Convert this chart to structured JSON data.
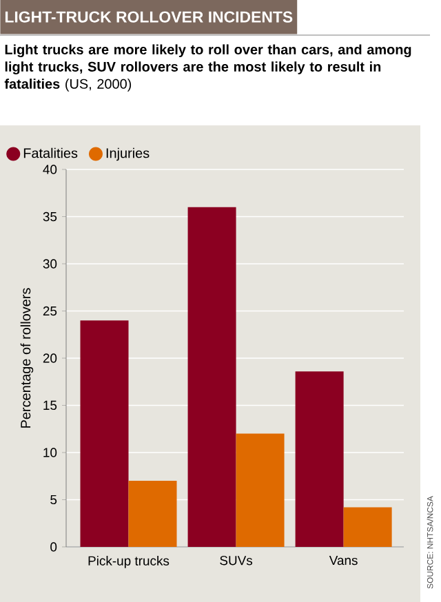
{
  "chart_data": {
    "type": "bar",
    "title": "LIGHT-TRUCK ROLLOVER INCIDENTS",
    "subtitle": "**Light trucks are more likely to roll over than cars, and among light trucks, SUV rollovers are the most likely to result in fatalities** (US, 2000)",
    "ylabel": "Percentage of rollovers",
    "categories": [
      "Pick-up trucks",
      "SUVs",
      "Vans"
    ],
    "series": [
      {
        "name": "Fatalities",
        "color": "#8b0021",
        "values": [
          24,
          36,
          18.6
        ]
      },
      {
        "name": "Injuries",
        "color": "#df6a00",
        "values": [
          7,
          12,
          4.2
        ]
      }
    ],
    "ylim": [
      0,
      40
    ],
    "yticks": [
      0,
      5,
      10,
      15,
      20,
      25,
      30,
      35,
      40
    ],
    "grid": "y",
    "legend": "top left",
    "marker": "circle",
    "annotations": [
      "SOURCE: NHTSA/NCSA"
    ]
  }
}
